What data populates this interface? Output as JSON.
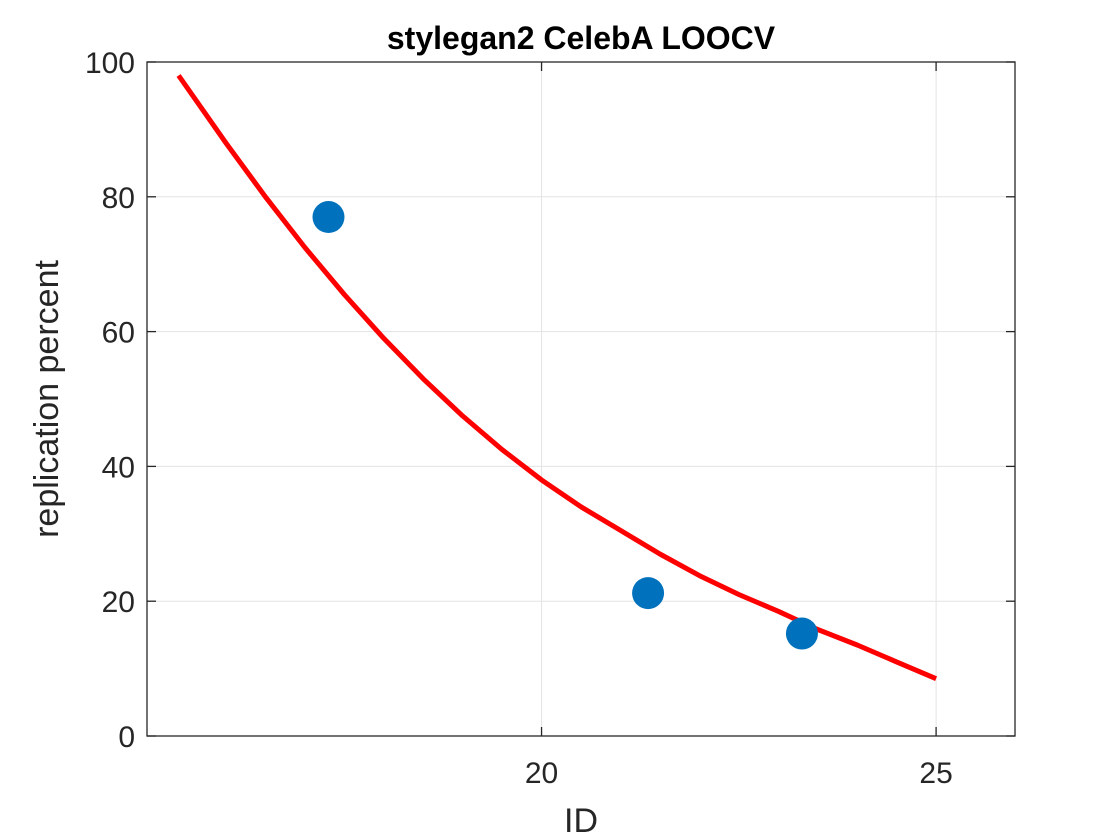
{
  "chart_data": {
    "type": "scatter",
    "title": "stylegan2 CelebA LOOCV",
    "xlabel": "ID",
    "ylabel": "replication percent",
    "xlim": [
      15,
      26
    ],
    "ylim": [
      0,
      100
    ],
    "xticks": [
      20,
      25
    ],
    "yticks": [
      0,
      20,
      40,
      60,
      80,
      100
    ],
    "grid": true,
    "series": [
      {
        "type": "scatter",
        "color": "#0072BD",
        "points": [
          {
            "x": 17.3,
            "y": 77
          },
          {
            "x": 21.35,
            "y": 21.2
          },
          {
            "x": 23.3,
            "y": 15.2
          }
        ]
      },
      {
        "type": "line",
        "color": "#FF0000",
        "points": [
          {
            "x": 15.4,
            "y": 98
          },
          {
            "x": 16.0,
            "y": 88
          },
          {
            "x": 16.5,
            "y": 80
          },
          {
            "x": 17.0,
            "y": 72.5
          },
          {
            "x": 17.5,
            "y": 65.5
          },
          {
            "x": 18.0,
            "y": 59
          },
          {
            "x": 18.5,
            "y": 53
          },
          {
            "x": 19.0,
            "y": 47.5
          },
          {
            "x": 19.5,
            "y": 42.5
          },
          {
            "x": 20.0,
            "y": 38
          },
          {
            "x": 20.5,
            "y": 34
          },
          {
            "x": 21.0,
            "y": 30.5
          },
          {
            "x": 21.5,
            "y": 27
          },
          {
            "x": 22.0,
            "y": 23.8
          },
          {
            "x": 22.5,
            "y": 21
          },
          {
            "x": 23.0,
            "y": 18.5
          },
          {
            "x": 23.5,
            "y": 15.8
          },
          {
            "x": 24.0,
            "y": 13.5
          },
          {
            "x": 24.5,
            "y": 11
          },
          {
            "x": 25.0,
            "y": 8.5
          }
        ]
      }
    ]
  }
}
